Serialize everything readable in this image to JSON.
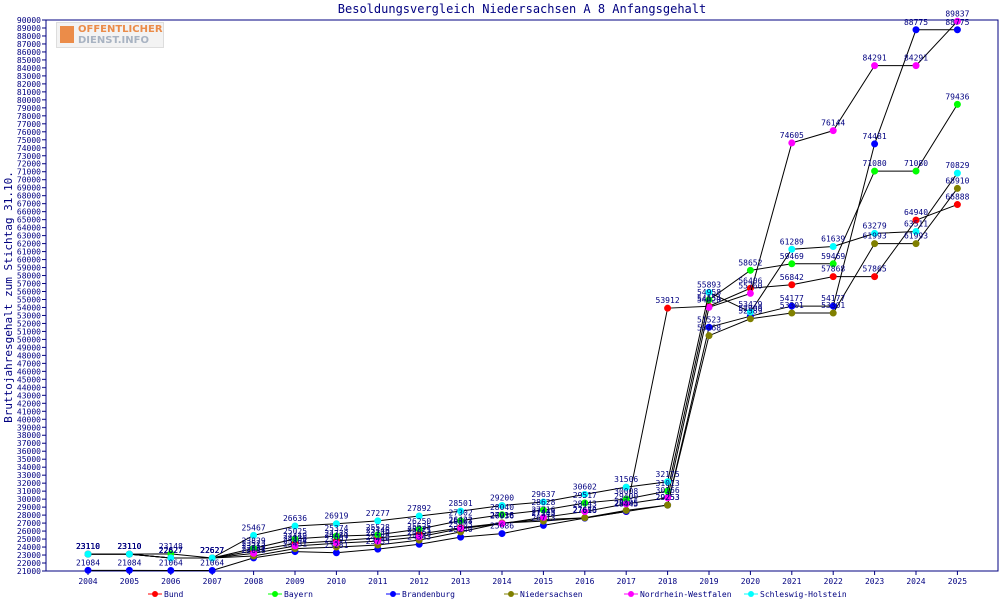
{
  "chart_data": {
    "type": "line",
    "title": "Besoldungsvergleich Niedersachsen A 8 Anfangsgehalt",
    "xlabel": "",
    "ylabel": "Bruttojahresgehalt zum Stichtag 31.10.",
    "ylim": [
      21000,
      90000
    ],
    "ytick_step": 1000,
    "grid": false,
    "legend_position": "bottom",
    "categories": [
      "2004",
      "2005",
      "2006",
      "2007",
      "2008",
      "2009",
      "2010",
      "2011",
      "2012",
      "2013",
      "2014",
      "2015",
      "2016",
      "2017",
      "2018",
      "2019",
      "2020",
      "2021",
      "2022",
      "2023",
      "2024",
      "2025"
    ],
    "series": [
      {
        "name": "Bund",
        "color": "#ff0000",
        "values": [
          23110,
          23110,
          22627,
          22627,
          23523,
          24449,
          24778,
          25146,
          25625,
          26422,
          27018,
          27443,
          27656,
          28445,
          53912,
          54154,
          56406,
          56842,
          57868,
          57865,
          64940,
          66888
        ],
        "labels": [
          "23110",
          "23110",
          "22627",
          "22627",
          "23523",
          "24449",
          "24778",
          "25146",
          "25625",
          "26422",
          "27018",
          "27443",
          "27656",
          "28445",
          "53912",
          "54154",
          "56406",
          "56842",
          "57868",
          "57865",
          "64940",
          "66888"
        ]
      },
      {
        "name": "Bayern",
        "color": "#00ff00",
        "values": [
          23110,
          23110,
          23148,
          22627,
          23829,
          25025,
          25374,
          25528,
          26250,
          27302,
          28040,
          28628,
          29517,
          30008,
          31013,
          54958,
          58652,
          59469,
          59469,
          71080,
          71080,
          79436
        ],
        "labels": [
          "23110",
          "23110",
          "23148",
          "22627",
          "23829",
          "25025",
          "25374",
          "25528",
          "26250",
          "27302",
          "28040",
          "28628",
          "29517",
          "30008",
          "31013",
          "54958",
          "58652",
          "59469",
          "59469",
          "71080",
          "71080",
          "79436"
        ]
      },
      {
        "name": "Brandenburg",
        "color": "#0000ff",
        "values": [
          21084,
          21084,
          21064,
          21064,
          22648,
          23431,
          23281,
          23735,
          24343,
          25240,
          25686,
          26713,
          27616,
          28445,
          29253,
          51523,
          52909,
          54177,
          54177,
          74481,
          88775,
          88775
        ],
        "labels": [
          "21084",
          "21084",
          "21064",
          "21064",
          "22648",
          "23431",
          "23281",
          "23735",
          "24343",
          "25240",
          "25686",
          "26713",
          "27616",
          "28445",
          "29253",
          "51523",
          "52909",
          "54177",
          "54177",
          "74481",
          "88775",
          "88775"
        ]
      },
      {
        "name": "Niedersachsen",
        "color": "#808000",
        "values": [
          23110,
          23110,
          22627,
          22627,
          22881,
          23804,
          23997,
          24250,
          24863,
          25903,
          27016,
          27245,
          27673,
          28595,
          29253,
          50468,
          52589,
          53301,
          53301,
          61993,
          61993,
          68910
        ],
        "labels": [
          "23110",
          "23110",
          "22627",
          "22627",
          "22881",
          "23804",
          "23997",
          "24250",
          "24863",
          "25903",
          "27016",
          "27245",
          "27673",
          "28595",
          "29253",
          "50468",
          "52589",
          "53301",
          "53301",
          "61993",
          "61993",
          "68910"
        ]
      },
      {
        "name": "Nordrhein-Westfalen",
        "color": "#ff00ff",
        "values": [
          23110,
          23110,
          22627,
          22627,
          23213,
          24136,
          24481,
          24740,
          25271,
          26303,
          26936,
          27716,
          28443,
          29400,
          30166,
          54020,
          55760,
          74605,
          76144,
          84291,
          84291,
          89837
        ],
        "labels": [
          "23110",
          "23110",
          "22627",
          "22627",
          "23213",
          "24136",
          "24481",
          "24740",
          "25271",
          "26303",
          "26936",
          "27716",
          "28443",
          "29400",
          "30166",
          "54020",
          "55760",
          "74605",
          "76144",
          "84291",
          "84291",
          "89837"
        ]
      },
      {
        "name": "Schleswig-Holstein",
        "color": "#00ffff",
        "values": [
          23110,
          23110,
          22627,
          22627,
          25467,
          26636,
          26919,
          27277,
          27892,
          28501,
          29200,
          29637,
          30602,
          31506,
          32175,
          55893,
          53429,
          61289,
          61639,
          63279,
          63511,
          70829
        ],
        "labels": [
          "23110",
          "23110",
          "22627",
          "22627",
          "25467",
          "26636",
          "26919",
          "27277",
          "27892",
          "28501",
          "29200",
          "29637",
          "30602",
          "31506",
          "32175",
          "55893",
          "53429",
          "61289",
          "61639",
          "63279",
          "63511",
          "70829"
        ]
      }
    ]
  }
}
